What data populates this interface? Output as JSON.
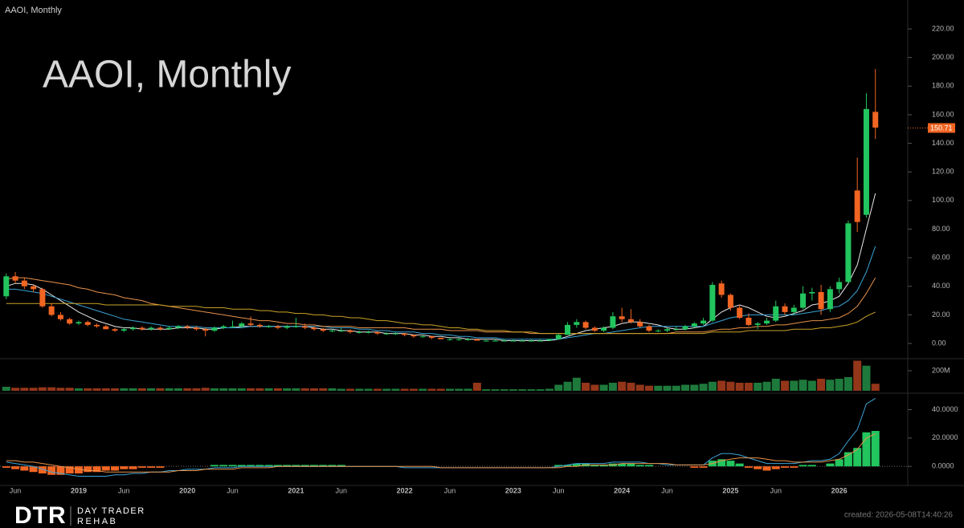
{
  "chart_data": {
    "type": "candlestick",
    "symbol_label": "AAOI, Monthly",
    "title": "AAOI, Monthly",
    "categories": [
      null,
      "Jun",
      null,
      null,
      null,
      null,
      null,
      null,
      "2019",
      null,
      null,
      null,
      null,
      "Jun",
      null,
      null,
      null,
      null,
      null,
      null,
      "2020",
      null,
      null,
      null,
      null,
      "Jun",
      null,
      null,
      null,
      null,
      null,
      null,
      "2021",
      null,
      null,
      null,
      null,
      "Jun",
      null,
      null,
      null,
      null,
      null,
      null,
      "2022",
      null,
      null,
      null,
      null,
      "Jun",
      null,
      null,
      null,
      null,
      null,
      null,
      "2023",
      null,
      null,
      null,
      null,
      "Jun",
      null,
      null,
      null,
      null,
      null,
      null,
      "2024",
      null,
      null,
      null,
      null,
      "Jun",
      null,
      null,
      null,
      null,
      null,
      null,
      "2025",
      null,
      null,
      null,
      null,
      "Jun",
      null,
      null,
      null,
      null,
      null,
      null,
      "2026",
      null,
      null,
      null,
      null
    ],
    "candles": [
      [
        33,
        49,
        31,
        47
      ],
      [
        47,
        50,
        42,
        44
      ],
      [
        44,
        46,
        38,
        40
      ],
      [
        40,
        41,
        36,
        38
      ],
      [
        38,
        39,
        25,
        26
      ],
      [
        26,
        28,
        19,
        20
      ],
      [
        20,
        22,
        16,
        17
      ],
      [
        17,
        18,
        13,
        14
      ],
      [
        14,
        16,
        13,
        15
      ],
      [
        15,
        16,
        12,
        13
      ],
      [
        13,
        14,
        11,
        12
      ],
      [
        12,
        13,
        10,
        10
      ],
      [
        10,
        11,
        8,
        9
      ],
      [
        9,
        11,
        8,
        10
      ],
      [
        10,
        12,
        9,
        11
      ],
      [
        11,
        12,
        9,
        10
      ],
      [
        10,
        12,
        9,
        11
      ],
      [
        11,
        12,
        9,
        10
      ],
      [
        10,
        12,
        10,
        11
      ],
      [
        11,
        13,
        10,
        12
      ],
      [
        12,
        13,
        10,
        11
      ],
      [
        11,
        12,
        9,
        10
      ],
      [
        10,
        11,
        5,
        9
      ],
      [
        9,
        12,
        8,
        11
      ],
      [
        11,
        13,
        10,
        12
      ],
      [
        12,
        16,
        11,
        12
      ],
      [
        12,
        15,
        11,
        14
      ],
      [
        14,
        19,
        12,
        13
      ],
      [
        13,
        14,
        11,
        12
      ],
      [
        12,
        13,
        11,
        12
      ],
      [
        12,
        13,
        10,
        11
      ],
      [
        11,
        13,
        10,
        12
      ],
      [
        12,
        18,
        11,
        12
      ],
      [
        12,
        14,
        10,
        11
      ],
      [
        11,
        12,
        9,
        10
      ],
      [
        10,
        11,
        8,
        9
      ],
      [
        9,
        10,
        8,
        9
      ],
      [
        9,
        11,
        8,
        9
      ],
      [
        9,
        10,
        7,
        8
      ],
      [
        8,
        9,
        7,
        8
      ],
      [
        8,
        9,
        7,
        8
      ],
      [
        8,
        8,
        6,
        7
      ],
      [
        7,
        8,
        6,
        7
      ],
      [
        7,
        8,
        6,
        7
      ],
      [
        7,
        7,
        5,
        6
      ],
      [
        6,
        6,
        4,
        5
      ],
      [
        5,
        6,
        4,
        5
      ],
      [
        5,
        5,
        3,
        4
      ],
      [
        4,
        4,
        3,
        3
      ],
      [
        3,
        4,
        2,
        3
      ],
      [
        3,
        4,
        2,
        3
      ],
      [
        3,
        4,
        2,
        3
      ],
      [
        3,
        3,
        2,
        2
      ],
      [
        2,
        3,
        2,
        2
      ],
      [
        2,
        3,
        2,
        2
      ],
      [
        2,
        3,
        2,
        2
      ],
      [
        2,
        3,
        2,
        2
      ],
      [
        2,
        3,
        2,
        2
      ],
      [
        2,
        3,
        2,
        2
      ],
      [
        2,
        3,
        2,
        2
      ],
      [
        2,
        3,
        2,
        3
      ],
      [
        3,
        7,
        3,
        6
      ],
      [
        6,
        15,
        6,
        13
      ],
      [
        13,
        17,
        11,
        15
      ],
      [
        15,
        16,
        10,
        11
      ],
      [
        11,
        12,
        8,
        9
      ],
      [
        9,
        12,
        8,
        11
      ],
      [
        11,
        22,
        10,
        19
      ],
      [
        19,
        25,
        15,
        17
      ],
      [
        17,
        24,
        14,
        15
      ],
      [
        15,
        17,
        11,
        12
      ],
      [
        12,
        13,
        8,
        9
      ],
      [
        9,
        10,
        8,
        9
      ],
      [
        9,
        11,
        8,
        10
      ],
      [
        10,
        12,
        9,
        10
      ],
      [
        10,
        13,
        9,
        12
      ],
      [
        12,
        15,
        11,
        14
      ],
      [
        14,
        18,
        13,
        16
      ],
      [
        16,
        43,
        15,
        41
      ],
      [
        42,
        44,
        32,
        34
      ],
      [
        34,
        35,
        23,
        25
      ],
      [
        25,
        27,
        17,
        18
      ],
      [
        18,
        21,
        12,
        13
      ],
      [
        13,
        15,
        10,
        14
      ],
      [
        14,
        18,
        13,
        16
      ],
      [
        16,
        30,
        15,
        26
      ],
      [
        26,
        28,
        20,
        22
      ],
      [
        22,
        27,
        20,
        25
      ],
      [
        25,
        40,
        24,
        35
      ],
      [
        35,
        39,
        30,
        36
      ],
      [
        36,
        41,
        20,
        24
      ],
      [
        24,
        40,
        22,
        38
      ],
      [
        38,
        46,
        35,
        43
      ],
      [
        43,
        86,
        42,
        84
      ],
      [
        107,
        130,
        78,
        85
      ],
      [
        90,
        175,
        88,
        164
      ],
      [
        162,
        192,
        143,
        151
      ]
    ],
    "up_color": "#22c55e",
    "down_color": "#f26522",
    "ylim": [
      -9.5,
      229
    ],
    "yticks": [
      {
        "value": 0,
        "label": "0.00"
      },
      {
        "value": 20,
        "label": "20.00"
      },
      {
        "value": 40,
        "label": "40.00"
      },
      {
        "value": 60,
        "label": "60.00"
      },
      {
        "value": 80,
        "label": "80.00"
      },
      {
        "value": 100,
        "label": "100.00"
      },
      {
        "value": 120,
        "label": "120.00"
      },
      {
        "value": 140,
        "label": "140.00"
      },
      {
        "value": 160,
        "label": "160.00"
      },
      {
        "value": 180,
        "label": "180.00"
      },
      {
        "value": 200,
        "label": "200.00"
      },
      {
        "value": 220,
        "label": "220.00"
      }
    ],
    "last_price": 150.71,
    "moving_averages": [
      {
        "color": "#e8e8e8",
        "values": [
          40,
          42,
          42,
          41,
          38,
          34,
          30,
          26,
          22,
          19,
          16,
          14,
          12,
          11,
          11,
          10,
          10,
          10,
          10,
          11,
          11,
          11,
          10,
          10,
          11,
          11,
          12,
          12,
          12,
          12,
          12,
          12,
          12,
          12,
          11,
          10,
          10,
          9,
          9,
          8,
          8,
          8,
          7,
          7,
          7,
          6,
          6,
          5,
          5,
          4,
          4,
          3,
          3,
          3,
          3,
          2,
          2,
          2,
          2,
          2,
          2,
          3,
          5,
          7,
          9,
          10,
          11,
          12,
          14,
          15,
          15,
          14,
          13,
          11,
          10,
          10,
          11,
          12,
          17,
          22,
          25,
          27,
          25,
          22,
          19,
          18,
          19,
          21,
          23,
          27,
          28,
          30,
          33,
          42,
          55,
          80,
          105
        ]
      },
      {
        "color": "#3ba3d6",
        "values": [
          38,
          38,
          37,
          36,
          35,
          33,
          31,
          29,
          27,
          25,
          23,
          21,
          19,
          17,
          16,
          15,
          14,
          13,
          12,
          12,
          12,
          12,
          11,
          11,
          11,
          11,
          11,
          12,
          12,
          12,
          12,
          12,
          12,
          12,
          12,
          12,
          11,
          11,
          11,
          10,
          10,
          9,
          9,
          8,
          8,
          8,
          7,
          7,
          6,
          6,
          5,
          5,
          4,
          4,
          4,
          3,
          3,
          3,
          3,
          3,
          3,
          3,
          4,
          5,
          6,
          7,
          7,
          8,
          9,
          10,
          11,
          12,
          12,
          12,
          12,
          12,
          12,
          12,
          14,
          16,
          18,
          19,
          20,
          20,
          20,
          20,
          20,
          20,
          21,
          22,
          23,
          25,
          26,
          30,
          37,
          50,
          68
        ]
      },
      {
        "color": "#e8914a",
        "values": [
          45,
          46,
          46,
          45,
          44,
          43,
          42,
          41,
          39,
          38,
          36,
          35,
          34,
          32,
          31,
          30,
          28,
          27,
          26,
          25,
          24,
          23,
          22,
          21,
          20,
          19,
          18,
          17,
          16,
          16,
          15,
          14,
          14,
          13,
          13,
          12,
          12,
          12,
          12,
          11,
          11,
          11,
          11,
          11,
          11,
          10,
          10,
          10,
          10,
          9,
          9,
          9,
          9,
          8,
          8,
          8,
          8,
          8,
          7,
          7,
          7,
          7,
          7,
          7,
          7,
          7,
          7,
          7,
          7,
          7,
          7,
          7,
          7,
          7,
          8,
          8,
          8,
          8,
          9,
          10,
          10,
          11,
          11,
          12,
          12,
          13,
          13,
          14,
          15,
          16,
          16,
          17,
          18,
          21,
          26,
          35,
          46
        ]
      },
      {
        "color": "#c9a227",
        "values": [
          28,
          28,
          28,
          28,
          28,
          28,
          28,
          28,
          28,
          28,
          28,
          27,
          27,
          27,
          27,
          27,
          27,
          27,
          26,
          26,
          26,
          26,
          25,
          25,
          25,
          24,
          24,
          24,
          23,
          23,
          22,
          22,
          21,
          21,
          20,
          20,
          19,
          19,
          18,
          18,
          17,
          16,
          16,
          15,
          14,
          14,
          13,
          13,
          12,
          11,
          11,
          10,
          10,
          9,
          9,
          9,
          8,
          8,
          8,
          7,
          7,
          7,
          7,
          7,
          7,
          7,
          7,
          7,
          7,
          7,
          7,
          7,
          7,
          7,
          7,
          7,
          7,
          7,
          8,
          8,
          8,
          8,
          9,
          9,
          9,
          9,
          9,
          10,
          10,
          10,
          11,
          11,
          12,
          13,
          15,
          19,
          22
        ]
      }
    ],
    "volume": {
      "values": [
        40,
        30,
        30,
        30,
        35,
        35,
        30,
        30,
        25,
        25,
        25,
        25,
        25,
        25,
        25,
        25,
        25,
        25,
        25,
        25,
        25,
        25,
        30,
        25,
        25,
        25,
        25,
        25,
        25,
        25,
        25,
        25,
        25,
        25,
        25,
        25,
        25,
        20,
        20,
        20,
        20,
        20,
        20,
        20,
        20,
        20,
        20,
        20,
        20,
        20,
        20,
        20,
        80,
        15,
        15,
        15,
        15,
        15,
        15,
        15,
        20,
        60,
        90,
        130,
        80,
        60,
        60,
        80,
        90,
        80,
        60,
        50,
        50,
        50,
        50,
        60,
        60,
        70,
        90,
        100,
        90,
        80,
        80,
        80,
        90,
        120,
        100,
        100,
        110,
        100,
        120,
        110,
        120,
        136,
        300,
        250,
        70
      ],
      "up_color": "#1e7a3c",
      "down_color": "#93361a",
      "ylim": [
        0,
        312
      ],
      "yticks": [
        {
          "value": 200,
          "label": "200M"
        }
      ]
    },
    "macd": {
      "histogram": [
        -1,
        -2,
        -3,
        -4,
        -5,
        -6,
        -6,
        -5,
        -5,
        -4,
        -4,
        -3,
        -3,
        -2,
        -2,
        -1,
        -1,
        -1,
        0,
        0,
        0,
        0,
        0,
        1,
        1,
        1,
        1,
        1,
        1,
        1,
        1,
        1,
        1,
        1,
        1,
        1,
        1,
        1,
        0,
        0,
        0,
        0,
        0,
        0,
        0,
        0,
        0,
        0,
        0,
        0,
        0,
        0,
        0,
        0,
        0,
        0,
        0,
        0,
        0,
        0,
        0,
        1,
        1,
        2,
        2,
        1,
        1,
        2,
        2,
        2,
        1,
        1,
        0,
        0,
        0,
        0,
        -1,
        -1,
        4,
        5,
        4,
        2,
        -1,
        -2,
        -3,
        -2,
        -1,
        -1,
        1,
        1,
        0,
        2,
        5,
        10,
        13,
        24,
        25
      ],
      "up_color": "#22c55e",
      "down_color": "#f26522",
      "macd_line": {
        "color": "#3ba3d6",
        "values": [
          3,
          2,
          1,
          0,
          -2,
          -4,
          -5,
          -6,
          -7,
          -7,
          -7,
          -7,
          -6,
          -6,
          -5,
          -5,
          -4,
          -4,
          -3,
          -3,
          -2,
          -2,
          -2,
          -1,
          -1,
          -1,
          0,
          0,
          0,
          0,
          0,
          0,
          0,
          0,
          0,
          0,
          0,
          0,
          0,
          0,
          0,
          0,
          0,
          0,
          -1,
          -1,
          -1,
          -1,
          -1,
          -1,
          -1,
          -1,
          -1,
          -1,
          -1,
          -1,
          -1,
          -1,
          -1,
          -1,
          -1,
          0,
          1,
          2,
          2,
          2,
          2,
          3,
          3,
          3,
          3,
          2,
          2,
          1,
          1,
          1,
          1,
          1,
          6,
          9,
          9,
          8,
          6,
          4,
          2,
          2,
          2,
          2,
          3,
          4,
          4,
          5,
          9,
          18,
          26,
          44,
          48
        ]
      },
      "signal_line": {
        "color": "#e8914a",
        "values": [
          4,
          4,
          3,
          3,
          2,
          1,
          0,
          -1,
          -2,
          -3,
          -3,
          -4,
          -4,
          -4,
          -4,
          -4,
          -4,
          -4,
          -4,
          -3,
          -3,
          -3,
          -2,
          -2,
          -2,
          -2,
          -1,
          -1,
          -1,
          -1,
          0,
          0,
          0,
          0,
          0,
          0,
          0,
          0,
          0,
          0,
          0,
          0,
          0,
          0,
          0,
          0,
          0,
          0,
          -1,
          -1,
          -1,
          -1,
          -1,
          -1,
          -1,
          -1,
          -1,
          -1,
          -1,
          -1,
          -1,
          -1,
          0,
          0,
          1,
          1,
          1,
          1,
          2,
          2,
          2,
          2,
          2,
          2,
          1,
          1,
          1,
          1,
          2,
          4,
          5,
          6,
          6,
          6,
          5,
          4,
          4,
          3,
          3,
          3,
          3,
          4,
          5,
          8,
          12,
          20,
          23
        ]
      },
      "ylim": [
        -13.5,
        50.5
      ],
      "yticks": [
        {
          "value": 0,
          "label": "0.0000"
        },
        {
          "value": 20,
          "label": "20.0000"
        },
        {
          "value": 40,
          "label": "40.0000"
        }
      ]
    }
  },
  "footer": {
    "logo": "DTR",
    "brand_line1": "DAY TRADER",
    "brand_line2": "REHAB",
    "created": "created: 2026-05-08T14:40:26"
  }
}
